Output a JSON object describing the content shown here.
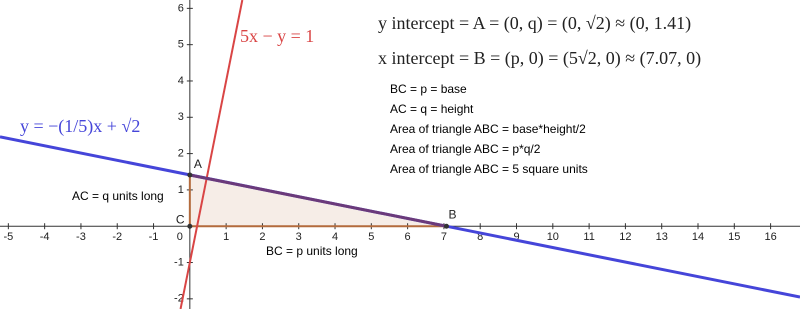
{
  "chart_data": {
    "type": "line",
    "xlim": [
      -5.23,
      16.81
    ],
    "ylim": [
      -2.28,
      6.23
    ],
    "xticks": [
      -5,
      -4,
      -3,
      -2,
      -1,
      0,
      1,
      2,
      3,
      4,
      5,
      6,
      7,
      8,
      9,
      10,
      11,
      12,
      13,
      14,
      15,
      16
    ],
    "yticks": [
      -2,
      -1,
      1,
      2,
      3,
      4,
      5,
      6
    ],
    "series": [
      {
        "name": "y = −(1/5)x + √2",
        "color": "#4545d9",
        "x": [
          -5.23,
          16.81
        ],
        "values": [
          2.46,
          -1.95
        ]
      },
      {
        "name": "5x − y = 1",
        "color": "#d94545",
        "x": [
          -0.256,
          1.446
        ],
        "values": [
          -2.28,
          6.23
        ]
      }
    ],
    "triangle": {
      "x": [
        0,
        0,
        7.07
      ],
      "values": [
        0,
        1.41,
        0
      ],
      "color": "#b36b3d"
    },
    "points": [
      {
        "label": "A",
        "x": 0,
        "y": 1.41
      },
      {
        "label": "B",
        "x": 7.07,
        "y": 0
      },
      {
        "label": "C",
        "x": 0,
        "y": 0
      }
    ],
    "equations": [
      "y intercept = A = (0, q) = (0, √2) ≈ (0, 1.41)",
      "x intercept = B = (p, 0) = (5√2, 0) ≈ (7.07, 0)"
    ],
    "notes": [
      "BC = p = base",
      "AC = q = height",
      "Area of triangle ABC = base*height/2",
      "Area of triangle ABC = p*q/2",
      "Area of triangle ABC = 5 square units"
    ],
    "side_labels": [
      "AC = q units long",
      "BC = p units long"
    ]
  }
}
